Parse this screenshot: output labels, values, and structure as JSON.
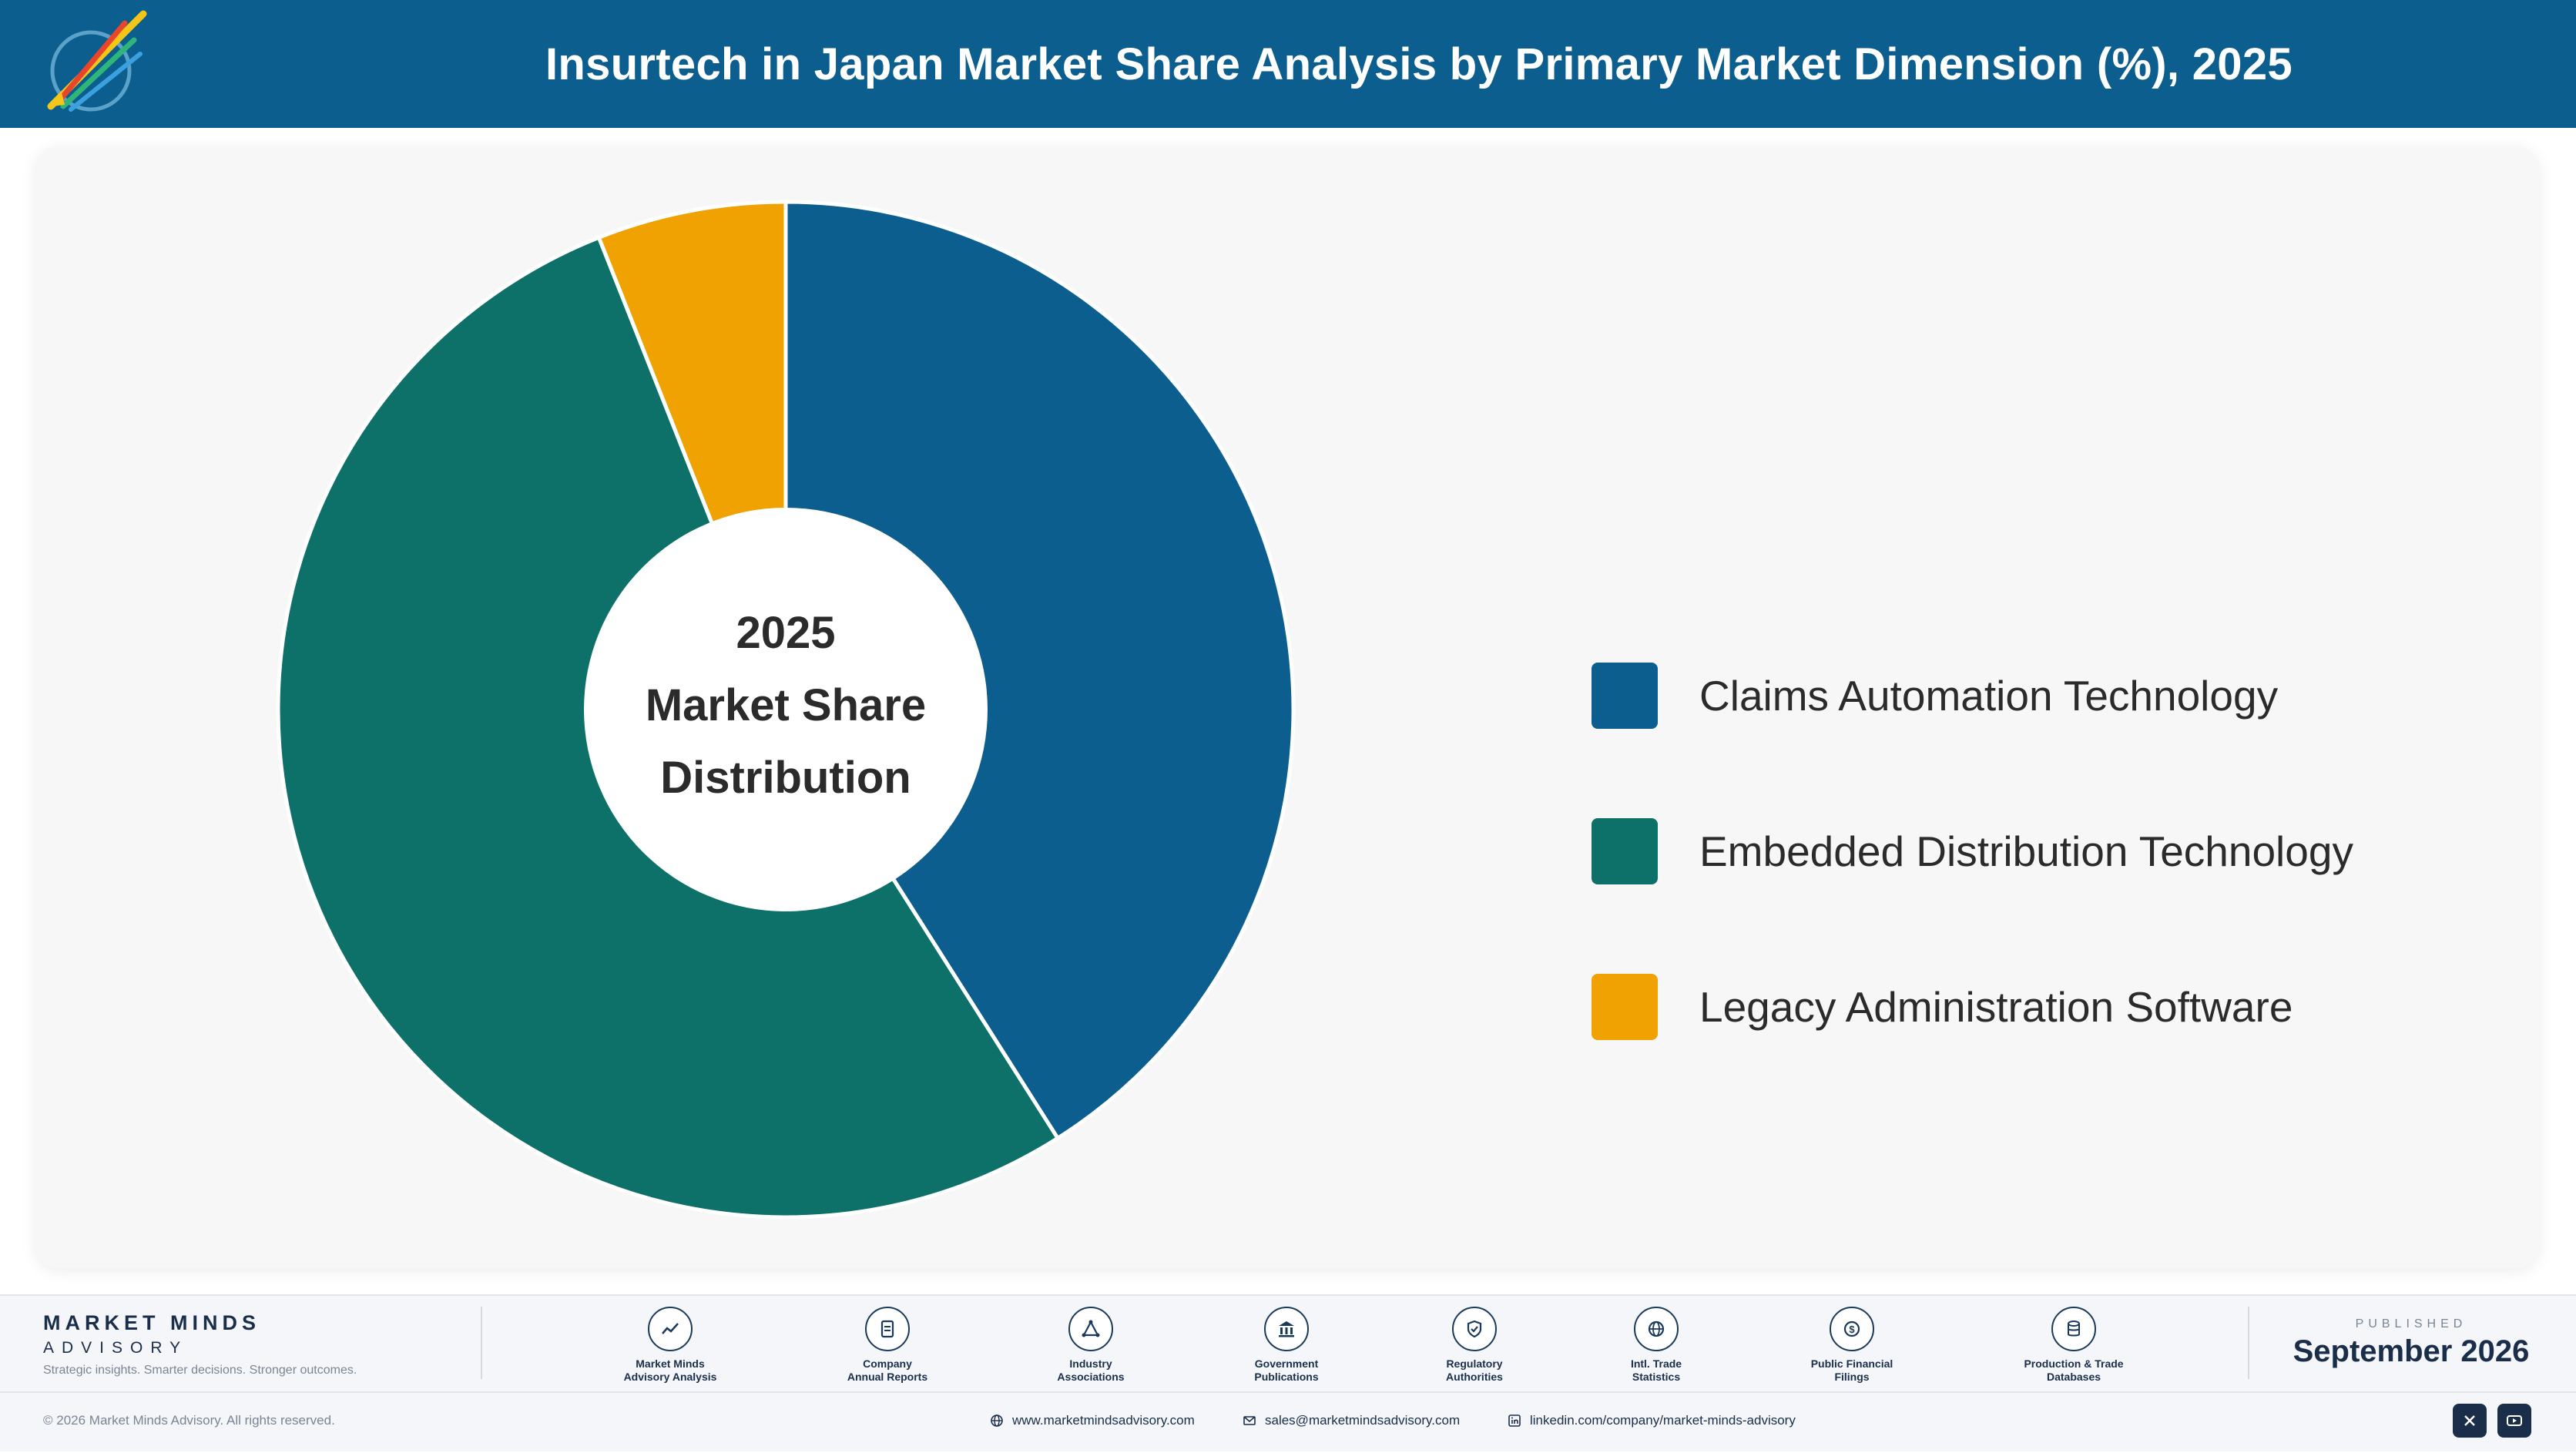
{
  "header": {
    "title": "Insurtech in Japan Market Share Analysis by Primary Market Dimension (%), 2025"
  },
  "chart_data": {
    "type": "pie",
    "title": "Insurtech in Japan Market Share Analysis by Primary Market Dimension (%), 2025",
    "center_label": [
      "2025",
      "Market Share",
      "Distribution"
    ],
    "categories": [
      "Claims Automation Technology",
      "Embedded Distribution Technology",
      "Legacy Administration Software"
    ],
    "values": [
      41,
      53,
      6
    ],
    "colors": [
      "#0b5e8e",
      "#0d7069",
      "#f0a202"
    ],
    "legend_position": "right",
    "donut": true
  },
  "footer": {
    "brand_name": "MARKET MINDS",
    "brand_sub": "ADVISORY",
    "tagline": "Strategic insights. Smarter decisions. Stronger outcomes.",
    "sources": [
      {
        "icon": "line-chart-icon",
        "line1": "Market Minds",
        "line2": "Advisory Analysis"
      },
      {
        "icon": "document-icon",
        "line1": "Company",
        "line2": "Annual Reports"
      },
      {
        "icon": "network-icon",
        "line1": "Industry",
        "line2": "Associations"
      },
      {
        "icon": "government-building-icon",
        "line1": "Government",
        "line2": "Publications"
      },
      {
        "icon": "shield-check-icon",
        "line1": "Regulatory",
        "line2": "Authorities"
      },
      {
        "icon": "globe-icon",
        "line1": "Intl. Trade",
        "line2": "Statistics"
      },
      {
        "icon": "dollar-coin-icon",
        "line1": "Public Financial",
        "line2": "Filings"
      },
      {
        "icon": "database-icon",
        "line1": "Production & Trade",
        "line2": "Databases"
      }
    ],
    "published_label": "PUBLISHED",
    "published_date": "September 2026",
    "copyright": "© 2026 Market Minds Advisory. All rights reserved.",
    "website": "www.marketmindsadvisory.com",
    "email": "sales@marketmindsadvisory.com",
    "linkedin": "linkedin.com/company/market-minds-advisory"
  }
}
